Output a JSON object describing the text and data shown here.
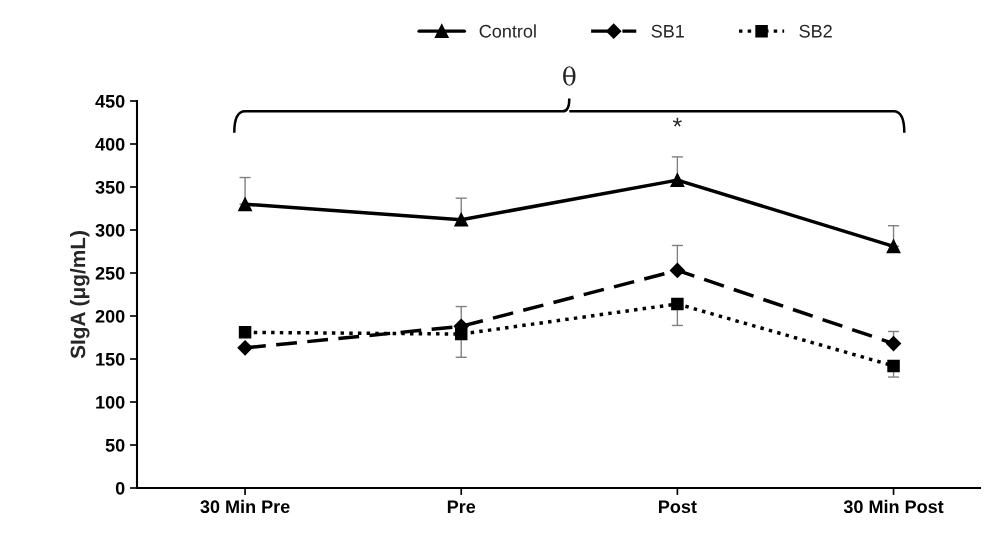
{
  "chart_data": {
    "type": "line",
    "ylabel": "SIgA (μg/mL)",
    "categories": [
      "30 Min Pre",
      "Pre",
      "Post",
      "30 Min Post"
    ],
    "series": [
      {
        "name": "Control",
        "color": "#000000",
        "values": [
          330,
          312,
          358,
          281
        ],
        "marker": "triangle",
        "line_style": "solid",
        "errors": [
          [
            330,
            361
          ],
          [
            312,
            337
          ],
          [
            358,
            385
          ],
          [
            281,
            305
          ]
        ]
      },
      {
        "name": "SB1",
        "color": "#000000",
        "values": [
          163,
          188,
          253,
          168
        ],
        "marker": "diamond",
        "line_style": "dashed",
        "errors": [
          null,
          [
            188,
            211
          ],
          [
            253,
            282
          ],
          [
            168,
            182
          ]
        ]
      },
      {
        "name": "SB2",
        "color": "#000000",
        "values": [
          181,
          179,
          214,
          142
        ],
        "marker": "square",
        "line_style": "dotted",
        "errors": [
          null,
          [
            152,
            179
          ],
          [
            189,
            214
          ],
          [
            129,
            142
          ]
        ]
      }
    ],
    "ylim": [
      0,
      450
    ],
    "yticks": [
      0,
      50,
      100,
      150,
      200,
      250,
      300,
      350,
      400,
      450
    ],
    "grid": false,
    "legend": "top",
    "annotations": [
      "*",
      "θ"
    ]
  }
}
